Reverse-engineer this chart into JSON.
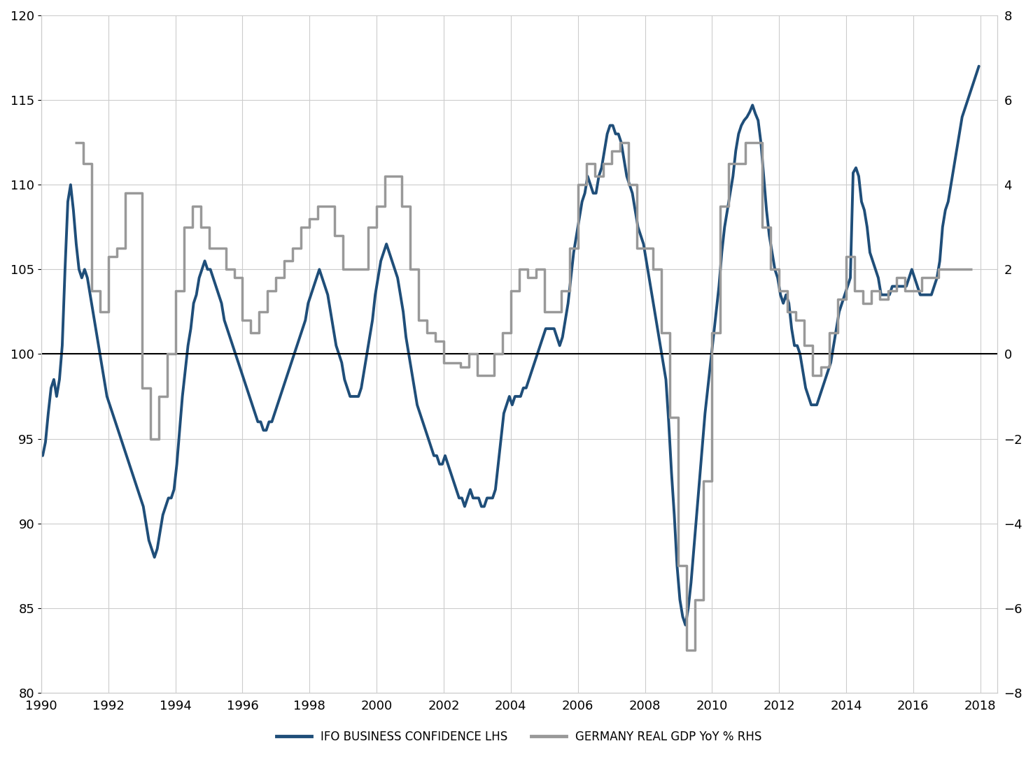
{
  "title": "",
  "ifo_color": "#1F4E79",
  "gdp_color": "#999999",
  "ifo_linewidth": 2.8,
  "gdp_linewidth": 2.5,
  "lhs_ylim": [
    80,
    120
  ],
  "rhs_ylim": [
    -8,
    8
  ],
  "lhs_yticks": [
    80,
    85,
    90,
    95,
    100,
    105,
    110,
    115,
    120
  ],
  "rhs_yticks": [
    -8,
    -6,
    -4,
    -2,
    0,
    2,
    4,
    6,
    8
  ],
  "xlim_start": 1990.0,
  "xlim_end": 2018.5,
  "xticks": [
    1990,
    1992,
    1994,
    1996,
    1998,
    2000,
    2002,
    2004,
    2006,
    2008,
    2010,
    2012,
    2014,
    2016,
    2018
  ],
  "legend_ifo": "IFO BUSINESS CONFIDENCE LHS",
  "legend_gdp": "GERMANY REAL GDP YoY % RHS",
  "ifo_data": [
    [
      1990.042,
      94.0
    ],
    [
      1990.125,
      94.8
    ],
    [
      1990.208,
      96.5
    ],
    [
      1990.292,
      98.0
    ],
    [
      1990.375,
      98.5
    ],
    [
      1990.458,
      97.5
    ],
    [
      1990.542,
      98.5
    ],
    [
      1990.625,
      100.5
    ],
    [
      1990.708,
      105.0
    ],
    [
      1990.792,
      109.0
    ],
    [
      1990.875,
      110.0
    ],
    [
      1990.958,
      108.5
    ],
    [
      1991.042,
      106.5
    ],
    [
      1991.125,
      105.0
    ],
    [
      1991.208,
      104.5
    ],
    [
      1991.292,
      105.0
    ],
    [
      1991.375,
      104.5
    ],
    [
      1991.458,
      103.5
    ],
    [
      1991.542,
      102.5
    ],
    [
      1991.625,
      101.5
    ],
    [
      1991.708,
      100.5
    ],
    [
      1991.792,
      99.5
    ],
    [
      1991.875,
      98.5
    ],
    [
      1991.958,
      97.5
    ],
    [
      1992.042,
      97.0
    ],
    [
      1992.125,
      96.5
    ],
    [
      1992.208,
      96.0
    ],
    [
      1992.292,
      95.5
    ],
    [
      1992.375,
      95.0
    ],
    [
      1992.458,
      94.5
    ],
    [
      1992.542,
      94.0
    ],
    [
      1992.625,
      93.5
    ],
    [
      1992.708,
      93.0
    ],
    [
      1992.792,
      92.5
    ],
    [
      1992.875,
      92.0
    ],
    [
      1992.958,
      91.5
    ],
    [
      1993.042,
      91.0
    ],
    [
      1993.125,
      90.0
    ],
    [
      1993.208,
      89.0
    ],
    [
      1993.292,
      88.5
    ],
    [
      1993.375,
      88.0
    ],
    [
      1993.458,
      88.5
    ],
    [
      1993.542,
      89.5
    ],
    [
      1993.625,
      90.5
    ],
    [
      1993.708,
      91.0
    ],
    [
      1993.792,
      91.5
    ],
    [
      1993.875,
      91.5
    ],
    [
      1993.958,
      92.0
    ],
    [
      1994.042,
      93.5
    ],
    [
      1994.125,
      95.5
    ],
    [
      1994.208,
      97.5
    ],
    [
      1994.292,
      99.0
    ],
    [
      1994.375,
      100.5
    ],
    [
      1994.458,
      101.5
    ],
    [
      1994.542,
      103.0
    ],
    [
      1994.625,
      103.5
    ],
    [
      1994.708,
      104.5
    ],
    [
      1994.792,
      105.0
    ],
    [
      1994.875,
      105.5
    ],
    [
      1994.958,
      105.0
    ],
    [
      1995.042,
      105.0
    ],
    [
      1995.125,
      104.5
    ],
    [
      1995.208,
      104.0
    ],
    [
      1995.292,
      103.5
    ],
    [
      1995.375,
      103.0
    ],
    [
      1995.458,
      102.0
    ],
    [
      1995.542,
      101.5
    ],
    [
      1995.625,
      101.0
    ],
    [
      1995.708,
      100.5
    ],
    [
      1995.792,
      100.0
    ],
    [
      1995.875,
      99.5
    ],
    [
      1995.958,
      99.0
    ],
    [
      1996.042,
      98.5
    ],
    [
      1996.125,
      98.0
    ],
    [
      1996.208,
      97.5
    ],
    [
      1996.292,
      97.0
    ],
    [
      1996.375,
      96.5
    ],
    [
      1996.458,
      96.0
    ],
    [
      1996.542,
      96.0
    ],
    [
      1996.625,
      95.5
    ],
    [
      1996.708,
      95.5
    ],
    [
      1996.792,
      96.0
    ],
    [
      1996.875,
      96.0
    ],
    [
      1996.958,
      96.5
    ],
    [
      1997.042,
      97.0
    ],
    [
      1997.125,
      97.5
    ],
    [
      1997.208,
      98.0
    ],
    [
      1997.292,
      98.5
    ],
    [
      1997.375,
      99.0
    ],
    [
      1997.458,
      99.5
    ],
    [
      1997.542,
      100.0
    ],
    [
      1997.625,
      100.5
    ],
    [
      1997.708,
      101.0
    ],
    [
      1997.792,
      101.5
    ],
    [
      1997.875,
      102.0
    ],
    [
      1997.958,
      103.0
    ],
    [
      1998.042,
      103.5
    ],
    [
      1998.125,
      104.0
    ],
    [
      1998.208,
      104.5
    ],
    [
      1998.292,
      105.0
    ],
    [
      1998.375,
      104.5
    ],
    [
      1998.458,
      104.0
    ],
    [
      1998.542,
      103.5
    ],
    [
      1998.625,
      102.5
    ],
    [
      1998.708,
      101.5
    ],
    [
      1998.792,
      100.5
    ],
    [
      1998.875,
      100.0
    ],
    [
      1998.958,
      99.5
    ],
    [
      1999.042,
      98.5
    ],
    [
      1999.125,
      98.0
    ],
    [
      1999.208,
      97.5
    ],
    [
      1999.292,
      97.5
    ],
    [
      1999.375,
      97.5
    ],
    [
      1999.458,
      97.5
    ],
    [
      1999.542,
      98.0
    ],
    [
      1999.625,
      99.0
    ],
    [
      1999.708,
      100.0
    ],
    [
      1999.792,
      101.0
    ],
    [
      1999.875,
      102.0
    ],
    [
      1999.958,
      103.5
    ],
    [
      2000.042,
      104.5
    ],
    [
      2000.125,
      105.5
    ],
    [
      2000.208,
      106.0
    ],
    [
      2000.292,
      106.5
    ],
    [
      2000.375,
      106.0
    ],
    [
      2000.458,
      105.5
    ],
    [
      2000.542,
      105.0
    ],
    [
      2000.625,
      104.5
    ],
    [
      2000.708,
      103.5
    ],
    [
      2000.792,
      102.5
    ],
    [
      2000.875,
      101.0
    ],
    [
      2000.958,
      100.0
    ],
    [
      2001.042,
      99.0
    ],
    [
      2001.125,
      98.0
    ],
    [
      2001.208,
      97.0
    ],
    [
      2001.292,
      96.5
    ],
    [
      2001.375,
      96.0
    ],
    [
      2001.458,
      95.5
    ],
    [
      2001.542,
      95.0
    ],
    [
      2001.625,
      94.5
    ],
    [
      2001.708,
      94.0
    ],
    [
      2001.792,
      94.0
    ],
    [
      2001.875,
      93.5
    ],
    [
      2001.958,
      93.5
    ],
    [
      2002.042,
      94.0
    ],
    [
      2002.125,
      93.5
    ],
    [
      2002.208,
      93.0
    ],
    [
      2002.292,
      92.5
    ],
    [
      2002.375,
      92.0
    ],
    [
      2002.458,
      91.5
    ],
    [
      2002.542,
      91.5
    ],
    [
      2002.625,
      91.0
    ],
    [
      2002.708,
      91.5
    ],
    [
      2002.792,
      92.0
    ],
    [
      2002.875,
      91.5
    ],
    [
      2002.958,
      91.5
    ],
    [
      2003.042,
      91.5
    ],
    [
      2003.125,
      91.0
    ],
    [
      2003.208,
      91.0
    ],
    [
      2003.292,
      91.5
    ],
    [
      2003.375,
      91.5
    ],
    [
      2003.458,
      91.5
    ],
    [
      2003.542,
      92.0
    ],
    [
      2003.625,
      93.5
    ],
    [
      2003.708,
      95.0
    ],
    [
      2003.792,
      96.5
    ],
    [
      2003.875,
      97.0
    ],
    [
      2003.958,
      97.5
    ],
    [
      2004.042,
      97.0
    ],
    [
      2004.125,
      97.5
    ],
    [
      2004.208,
      97.5
    ],
    [
      2004.292,
      97.5
    ],
    [
      2004.375,
      98.0
    ],
    [
      2004.458,
      98.0
    ],
    [
      2004.542,
      98.5
    ],
    [
      2004.625,
      99.0
    ],
    [
      2004.708,
      99.5
    ],
    [
      2004.792,
      100.0
    ],
    [
      2004.875,
      100.5
    ],
    [
      2004.958,
      101.0
    ],
    [
      2005.042,
      101.5
    ],
    [
      2005.125,
      101.5
    ],
    [
      2005.208,
      101.5
    ],
    [
      2005.292,
      101.5
    ],
    [
      2005.375,
      101.0
    ],
    [
      2005.458,
      100.5
    ],
    [
      2005.542,
      101.0
    ],
    [
      2005.625,
      102.0
    ],
    [
      2005.708,
      103.0
    ],
    [
      2005.792,
      104.5
    ],
    [
      2005.875,
      106.0
    ],
    [
      2005.958,
      107.0
    ],
    [
      2006.042,
      108.0
    ],
    [
      2006.125,
      109.0
    ],
    [
      2006.208,
      109.5
    ],
    [
      2006.292,
      110.5
    ],
    [
      2006.375,
      110.0
    ],
    [
      2006.458,
      109.5
    ],
    [
      2006.542,
      109.5
    ],
    [
      2006.625,
      110.5
    ],
    [
      2006.708,
      111.0
    ],
    [
      2006.792,
      112.0
    ],
    [
      2006.875,
      113.0
    ],
    [
      2006.958,
      113.5
    ],
    [
      2007.042,
      113.5
    ],
    [
      2007.125,
      113.0
    ],
    [
      2007.208,
      113.0
    ],
    [
      2007.292,
      112.5
    ],
    [
      2007.375,
      111.5
    ],
    [
      2007.458,
      110.5
    ],
    [
      2007.542,
      110.0
    ],
    [
      2007.625,
      109.5
    ],
    [
      2007.708,
      108.5
    ],
    [
      2007.792,
      107.5
    ],
    [
      2007.875,
      107.0
    ],
    [
      2007.958,
      106.5
    ],
    [
      2008.042,
      105.5
    ],
    [
      2008.125,
      104.5
    ],
    [
      2008.208,
      103.5
    ],
    [
      2008.292,
      102.5
    ],
    [
      2008.375,
      101.5
    ],
    [
      2008.458,
      100.5
    ],
    [
      2008.542,
      99.5
    ],
    [
      2008.625,
      98.5
    ],
    [
      2008.708,
      96.0
    ],
    [
      2008.792,
      93.0
    ],
    [
      2008.875,
      90.5
    ],
    [
      2008.958,
      87.5
    ],
    [
      2009.042,
      85.5
    ],
    [
      2009.125,
      84.5
    ],
    [
      2009.208,
      84.0
    ],
    [
      2009.292,
      85.0
    ],
    [
      2009.375,
      86.5
    ],
    [
      2009.458,
      88.5
    ],
    [
      2009.542,
      90.5
    ],
    [
      2009.625,
      92.5
    ],
    [
      2009.708,
      94.5
    ],
    [
      2009.792,
      96.5
    ],
    [
      2009.875,
      98.0
    ],
    [
      2009.958,
      99.5
    ],
    [
      2010.042,
      101.0
    ],
    [
      2010.125,
      102.5
    ],
    [
      2010.208,
      104.0
    ],
    [
      2010.292,
      106.0
    ],
    [
      2010.375,
      107.5
    ],
    [
      2010.458,
      108.5
    ],
    [
      2010.542,
      109.5
    ],
    [
      2010.625,
      110.5
    ],
    [
      2010.708,
      112.0
    ],
    [
      2010.792,
      113.0
    ],
    [
      2010.875,
      113.5
    ],
    [
      2010.958,
      113.8
    ],
    [
      2011.042,
      114.0
    ],
    [
      2011.125,
      114.3
    ],
    [
      2011.208,
      114.7
    ],
    [
      2011.292,
      114.2
    ],
    [
      2011.375,
      113.8
    ],
    [
      2011.458,
      112.5
    ],
    [
      2011.542,
      110.5
    ],
    [
      2011.625,
      108.5
    ],
    [
      2011.708,
      107.0
    ],
    [
      2011.792,
      106.0
    ],
    [
      2011.875,
      105.0
    ],
    [
      2011.958,
      104.5
    ],
    [
      2012.042,
      103.5
    ],
    [
      2012.125,
      103.0
    ],
    [
      2012.208,
      103.5
    ],
    [
      2012.292,
      103.0
    ],
    [
      2012.375,
      101.5
    ],
    [
      2012.458,
      100.5
    ],
    [
      2012.542,
      100.5
    ],
    [
      2012.625,
      100.0
    ],
    [
      2012.708,
      99.0
    ],
    [
      2012.792,
      98.0
    ],
    [
      2012.875,
      97.5
    ],
    [
      2012.958,
      97.0
    ],
    [
      2013.042,
      97.0
    ],
    [
      2013.125,
      97.0
    ],
    [
      2013.208,
      97.5
    ],
    [
      2013.292,
      98.0
    ],
    [
      2013.375,
      98.5
    ],
    [
      2013.458,
      99.0
    ],
    [
      2013.542,
      99.5
    ],
    [
      2013.625,
      100.5
    ],
    [
      2013.708,
      101.5
    ],
    [
      2013.792,
      102.5
    ],
    [
      2013.875,
      103.0
    ],
    [
      2013.958,
      103.5
    ],
    [
      2014.042,
      104.0
    ],
    [
      2014.125,
      104.5
    ],
    [
      2014.208,
      110.7
    ],
    [
      2014.292,
      111.0
    ],
    [
      2014.375,
      110.5
    ],
    [
      2014.458,
      109.0
    ],
    [
      2014.542,
      108.5
    ],
    [
      2014.625,
      107.5
    ],
    [
      2014.708,
      106.0
    ],
    [
      2014.792,
      105.5
    ],
    [
      2014.875,
      105.0
    ],
    [
      2014.958,
      104.5
    ],
    [
      2015.042,
      103.5
    ],
    [
      2015.125,
      103.5
    ],
    [
      2015.208,
      103.5
    ],
    [
      2015.292,
      103.5
    ],
    [
      2015.375,
      104.0
    ],
    [
      2015.458,
      104.0
    ],
    [
      2015.542,
      104.0
    ],
    [
      2015.625,
      104.0
    ],
    [
      2015.708,
      104.0
    ],
    [
      2015.792,
      104.0
    ],
    [
      2015.875,
      104.5
    ],
    [
      2015.958,
      105.0
    ],
    [
      2016.042,
      104.5
    ],
    [
      2016.125,
      104.0
    ],
    [
      2016.208,
      103.5
    ],
    [
      2016.292,
      103.5
    ],
    [
      2016.375,
      103.5
    ],
    [
      2016.458,
      103.5
    ],
    [
      2016.542,
      103.5
    ],
    [
      2016.625,
      104.0
    ],
    [
      2016.708,
      104.5
    ],
    [
      2016.792,
      105.5
    ],
    [
      2016.875,
      107.5
    ],
    [
      2016.958,
      108.5
    ],
    [
      2017.042,
      109.0
    ],
    [
      2017.125,
      110.0
    ],
    [
      2017.208,
      111.0
    ],
    [
      2017.292,
      112.0
    ],
    [
      2017.375,
      113.0
    ],
    [
      2017.458,
      114.0
    ],
    [
      2017.542,
      114.5
    ],
    [
      2017.625,
      115.0
    ],
    [
      2017.708,
      115.5
    ],
    [
      2017.792,
      116.0
    ],
    [
      2017.875,
      116.5
    ],
    [
      2017.958,
      117.0
    ]
  ],
  "gdp_data": [
    [
      1991.0,
      5.0
    ],
    [
      1991.25,
      4.5
    ],
    [
      1991.5,
      1.5
    ],
    [
      1991.75,
      1.0
    ],
    [
      1992.0,
      2.3
    ],
    [
      1992.25,
      2.5
    ],
    [
      1992.5,
      3.8
    ],
    [
      1992.75,
      3.8
    ],
    [
      1993.0,
      -0.8
    ],
    [
      1993.25,
      -2.0
    ],
    [
      1993.5,
      -1.0
    ],
    [
      1993.75,
      0.0
    ],
    [
      1994.0,
      1.5
    ],
    [
      1994.25,
      3.0
    ],
    [
      1994.5,
      3.5
    ],
    [
      1994.75,
      3.0
    ],
    [
      1995.0,
      2.5
    ],
    [
      1995.25,
      2.5
    ],
    [
      1995.5,
      2.0
    ],
    [
      1995.75,
      1.8
    ],
    [
      1996.0,
      0.8
    ],
    [
      1996.25,
      0.5
    ],
    [
      1996.5,
      1.0
    ],
    [
      1996.75,
      1.5
    ],
    [
      1997.0,
      1.8
    ],
    [
      1997.25,
      2.2
    ],
    [
      1997.5,
      2.5
    ],
    [
      1997.75,
      3.0
    ],
    [
      1998.0,
      3.2
    ],
    [
      1998.25,
      3.5
    ],
    [
      1998.5,
      3.5
    ],
    [
      1998.75,
      2.8
    ],
    [
      1999.0,
      2.0
    ],
    [
      1999.25,
      2.0
    ],
    [
      1999.5,
      2.0
    ],
    [
      1999.75,
      3.0
    ],
    [
      2000.0,
      3.5
    ],
    [
      2000.25,
      4.2
    ],
    [
      2000.5,
      4.2
    ],
    [
      2000.75,
      3.5
    ],
    [
      2001.0,
      2.0
    ],
    [
      2001.25,
      0.8
    ],
    [
      2001.5,
      0.5
    ],
    [
      2001.75,
      0.3
    ],
    [
      2002.0,
      -0.2
    ],
    [
      2002.25,
      -0.2
    ],
    [
      2002.5,
      -0.3
    ],
    [
      2002.75,
      0.0
    ],
    [
      2003.0,
      -0.5
    ],
    [
      2003.25,
      -0.5
    ],
    [
      2003.5,
      0.0
    ],
    [
      2003.75,
      0.5
    ],
    [
      2004.0,
      1.5
    ],
    [
      2004.25,
      2.0
    ],
    [
      2004.5,
      1.8
    ],
    [
      2004.75,
      2.0
    ],
    [
      2005.0,
      1.0
    ],
    [
      2005.25,
      1.0
    ],
    [
      2005.5,
      1.5
    ],
    [
      2005.75,
      2.5
    ],
    [
      2006.0,
      4.0
    ],
    [
      2006.25,
      4.5
    ],
    [
      2006.5,
      4.2
    ],
    [
      2006.75,
      4.5
    ],
    [
      2007.0,
      4.8
    ],
    [
      2007.25,
      5.0
    ],
    [
      2007.5,
      4.0
    ],
    [
      2007.75,
      2.5
    ],
    [
      2008.0,
      2.5
    ],
    [
      2008.25,
      2.0
    ],
    [
      2008.5,
      0.5
    ],
    [
      2008.75,
      -1.5
    ],
    [
      2009.0,
      -5.0
    ],
    [
      2009.25,
      -7.0
    ],
    [
      2009.5,
      -5.8
    ],
    [
      2009.75,
      -3.0
    ],
    [
      2010.0,
      0.5
    ],
    [
      2010.25,
      3.5
    ],
    [
      2010.5,
      4.5
    ],
    [
      2010.75,
      4.5
    ],
    [
      2011.0,
      5.0
    ],
    [
      2011.25,
      5.0
    ],
    [
      2011.5,
      3.0
    ],
    [
      2011.75,
      2.0
    ],
    [
      2012.0,
      1.5
    ],
    [
      2012.25,
      1.0
    ],
    [
      2012.5,
      0.8
    ],
    [
      2012.75,
      0.2
    ],
    [
      2013.0,
      -0.5
    ],
    [
      2013.25,
      -0.3
    ],
    [
      2013.5,
      0.5
    ],
    [
      2013.75,
      1.3
    ],
    [
      2014.0,
      2.3
    ],
    [
      2014.25,
      1.5
    ],
    [
      2014.5,
      1.2
    ],
    [
      2014.75,
      1.5
    ],
    [
      2015.0,
      1.3
    ],
    [
      2015.25,
      1.5
    ],
    [
      2015.5,
      1.8
    ],
    [
      2015.75,
      1.5
    ],
    [
      2016.0,
      1.5
    ],
    [
      2016.25,
      1.8
    ],
    [
      2016.5,
      1.8
    ],
    [
      2016.75,
      2.0
    ],
    [
      2017.0,
      2.0
    ],
    [
      2017.25,
      2.0
    ],
    [
      2017.5,
      2.0
    ],
    [
      2017.75,
      2.0
    ]
  ],
  "background_color": "#ffffff",
  "grid_color": "#cccccc",
  "zero_line_color": "#000000",
  "tick_fontsize": 13,
  "legend_fontsize": 12
}
